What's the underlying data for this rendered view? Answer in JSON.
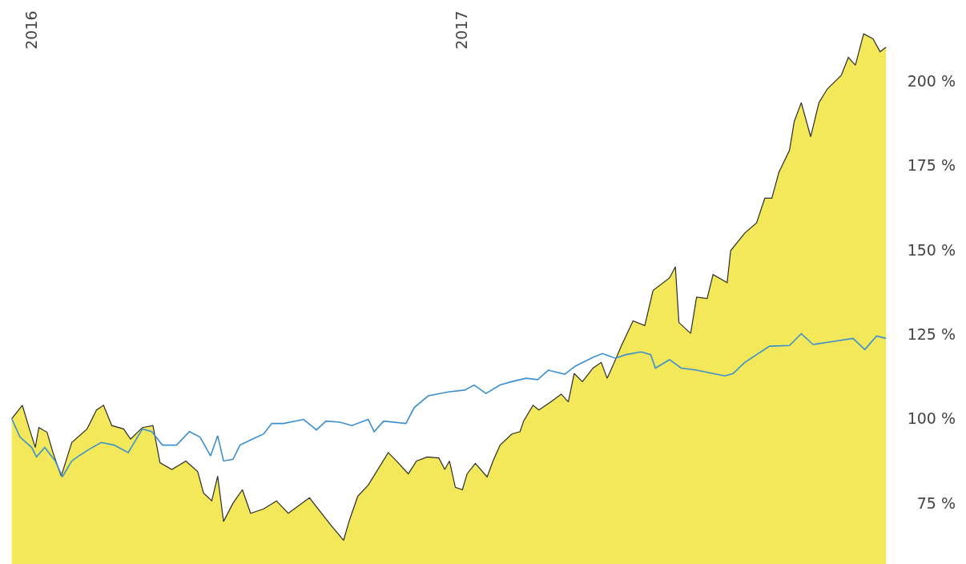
{
  "chart_data": {
    "type": "area",
    "xlim": [
      "2015-12-05",
      "2018-03-05"
    ],
    "xticks": [
      {
        "value": "2016-01-01",
        "label": "2016"
      },
      {
        "value": "2017-01-01",
        "label": "2017"
      }
    ],
    "ylim": [
      57,
      224
    ],
    "yticks": [
      {
        "value": 75,
        "label": "75 %"
      },
      {
        "value": 100,
        "label": "100 %"
      },
      {
        "value": 125,
        "label": "125 %"
      },
      {
        "value": 150,
        "label": "150 %"
      },
      {
        "value": 175,
        "label": "175 %"
      },
      {
        "value": 200,
        "label": "200 %"
      }
    ],
    "grid": false,
    "marker": "none",
    "line_style": "solid",
    "series": [
      {
        "color": "#f2e85a",
        "x": [
          "2015-12-15",
          "2015-12-24",
          "2015-12-30",
          "2016-01-04",
          "2016-01-07",
          "2016-01-14",
          "2016-01-19",
          "2016-01-26",
          "2016-02-04",
          "2016-02-17",
          "2016-02-25",
          "2016-03-02",
          "2016-03-09",
          "2016-03-19",
          "2016-03-25",
          "2016-04-04",
          "2016-04-13",
          "2016-04-19",
          "2016-04-29",
          "2016-05-11",
          "2016-05-21",
          "2016-05-26",
          "2016-06-02",
          "2016-06-07",
          "2016-06-12",
          "2016-06-20",
          "2016-06-28",
          "2016-07-05",
          "2016-07-16",
          "2016-07-27",
          "2016-08-06",
          "2016-08-24",
          "2016-09-11",
          "2016-09-22",
          "2016-09-27",
          "2016-10-04",
          "2016-10-13",
          "2016-10-30",
          "2016-11-06",
          "2016-11-16",
          "2016-11-23",
          "2016-12-02",
          "2016-12-12",
          "2016-12-17",
          "2016-12-21",
          "2016-12-26",
          "2017-01-01",
          "2017-01-05",
          "2017-01-12",
          "2017-01-22",
          "2017-01-27",
          "2017-02-02",
          "2017-02-12",
          "2017-02-19",
          "2017-02-22",
          "2017-03-02",
          "2017-03-07",
          "2017-03-17",
          "2017-03-26",
          "2017-04-01",
          "2017-04-06",
          "2017-04-13",
          "2017-04-22",
          "2017-04-29",
          "2017-05-04",
          "2017-05-09",
          "2017-05-16",
          "2017-05-26",
          "2017-06-05",
          "2017-06-12",
          "2017-06-26",
          "2017-07-01",
          "2017-07-04",
          "2017-07-14",
          "2017-07-19",
          "2017-07-28",
          "2017-08-02",
          "2017-08-14",
          "2017-08-17",
          "2017-08-29",
          "2017-09-08",
          "2017-09-15",
          "2017-09-21",
          "2017-09-27",
          "2017-10-06",
          "2017-10-10",
          "2017-10-16",
          "2017-10-24",
          "2017-10-31",
          "2017-11-07",
          "2017-11-19",
          "2017-11-25",
          "2017-12-01",
          "2017-12-08",
          "2017-12-16",
          "2017-12-22",
          "2017-12-27"
        ],
        "values": [
          100,
          104,
          97,
          91.5,
          97.4,
          96,
          90,
          83,
          93,
          97,
          102.6,
          104,
          98,
          97,
          94,
          97.4,
          98,
          87,
          85,
          87.5,
          84.4,
          78,
          75.7,
          83,
          69.6,
          75,
          79,
          72,
          73.3,
          75.7,
          72,
          76.6,
          68.6,
          64,
          70,
          77,
          80.4,
          90,
          87.5,
          83.7,
          87.5,
          88.7,
          88.4,
          85,
          87.5,
          79.7,
          79,
          83.7,
          86.8,
          82.8,
          87.5,
          92.2,
          95.5,
          96.2,
          99.3,
          104,
          102.6,
          105,
          107.3,
          105,
          113.4,
          111,
          115,
          116.7,
          112,
          115.8,
          121.5,
          129,
          127.6,
          138,
          141.7,
          145,
          128.5,
          125.3,
          136,
          135.6,
          142.7,
          140.3,
          149.8,
          155,
          158,
          165.3,
          165.3,
          173,
          179.5,
          188,
          193.6,
          183.5,
          193.6,
          197.6,
          201.7,
          207,
          204.7,
          214,
          212.5,
          208.7,
          210
        ]
      },
      {
        "type": "line",
        "color": "#3a8fd0",
        "x": [
          "2015-12-15",
          "2015-12-22",
          "2016-01-01",
          "2016-01-05",
          "2016-01-12",
          "2016-01-21",
          "2016-01-27",
          "2016-02-04",
          "2016-02-10",
          "2016-02-19",
          "2016-02-29",
          "2016-03-11",
          "2016-03-23",
          "2016-04-04",
          "2016-04-12",
          "2016-04-21",
          "2016-05-03",
          "2016-05-14",
          "2016-05-23",
          "2016-06-01",
          "2016-06-07",
          "2016-06-12",
          "2016-06-20",
          "2016-06-26",
          "2016-07-06",
          "2016-07-16",
          "2016-07-23",
          "2016-08-02",
          "2016-08-19",
          "2016-08-30",
          "2016-09-07",
          "2016-09-19",
          "2016-09-29",
          "2016-10-13",
          "2016-10-18",
          "2016-10-26",
          "2016-11-14",
          "2016-11-21",
          "2016-12-03",
          "2016-12-21",
          "2017-01-03",
          "2017-01-11",
          "2017-01-21",
          "2017-02-02",
          "2017-02-12",
          "2017-02-24",
          "2017-03-06",
          "2017-03-15",
          "2017-03-29",
          "2017-04-07",
          "2017-04-22",
          "2017-04-30",
          "2017-05-11",
          "2017-05-20",
          "2017-06-02",
          "2017-06-10",
          "2017-06-14",
          "2017-06-26",
          "2017-07-06",
          "2017-07-19",
          "2017-08-02",
          "2017-08-12",
          "2017-08-19",
          "2017-08-29",
          "2017-09-19",
          "2017-10-06",
          "2017-10-16",
          "2017-10-26",
          "2017-11-12",
          "2017-11-29",
          "2017-12-09",
          "2017-12-19",
          "2017-12-27"
        ],
        "values": [
          100,
          94.6,
          91.5,
          88.7,
          91.5,
          87.5,
          82.8,
          87.5,
          89,
          91,
          93,
          92.2,
          90,
          97,
          96.2,
          92.2,
          92.2,
          96.2,
          94.6,
          89,
          95,
          87.5,
          88,
          92.2,
          93.9,
          95.5,
          98.6,
          98.6,
          99.8,
          96.7,
          99.3,
          99,
          98,
          99.8,
          96.2,
          99.3,
          98.6,
          103.3,
          106.8,
          108,
          108.5,
          110,
          107.5,
          110,
          111,
          112,
          111.6,
          114.4,
          113.2,
          115.6,
          118.2,
          119.3,
          117.9,
          119,
          119.8,
          119,
          115,
          117.5,
          115,
          114.4,
          113.4,
          112.7,
          113.4,
          116.7,
          121.5,
          121.7,
          125.2,
          122,
          122.9,
          123.8,
          120.5,
          124.5,
          123.8
        ]
      }
    ]
  }
}
